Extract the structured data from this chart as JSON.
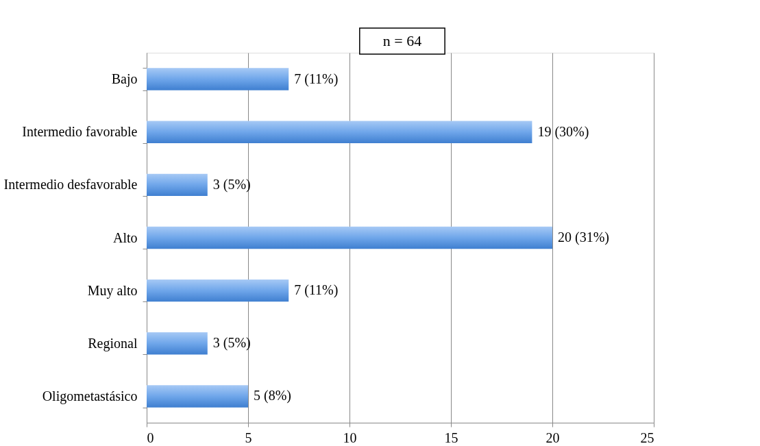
{
  "chart_data": {
    "type": "bar",
    "orientation": "horizontal",
    "categories": [
      "Bajo",
      "Intermedio favorable",
      "Intermedio desfavorable",
      "Alto",
      "Muy alto",
      "Regional",
      "Oligometastásico"
    ],
    "values": [
      7,
      19,
      3,
      20,
      7,
      3,
      5
    ],
    "value_labels": [
      "7 (11%)",
      "19 (30%)",
      "3 (5%)",
      "20 (31%)",
      "7 (11%)",
      "3 (5%)",
      "5 (8%)"
    ],
    "color": "#6fa6ea",
    "xlim": [
      0,
      25
    ],
    "xticks": [
      0,
      5,
      10,
      15,
      20,
      25
    ],
    "grid": "x",
    "annotations": [
      "n = 64"
    ]
  }
}
